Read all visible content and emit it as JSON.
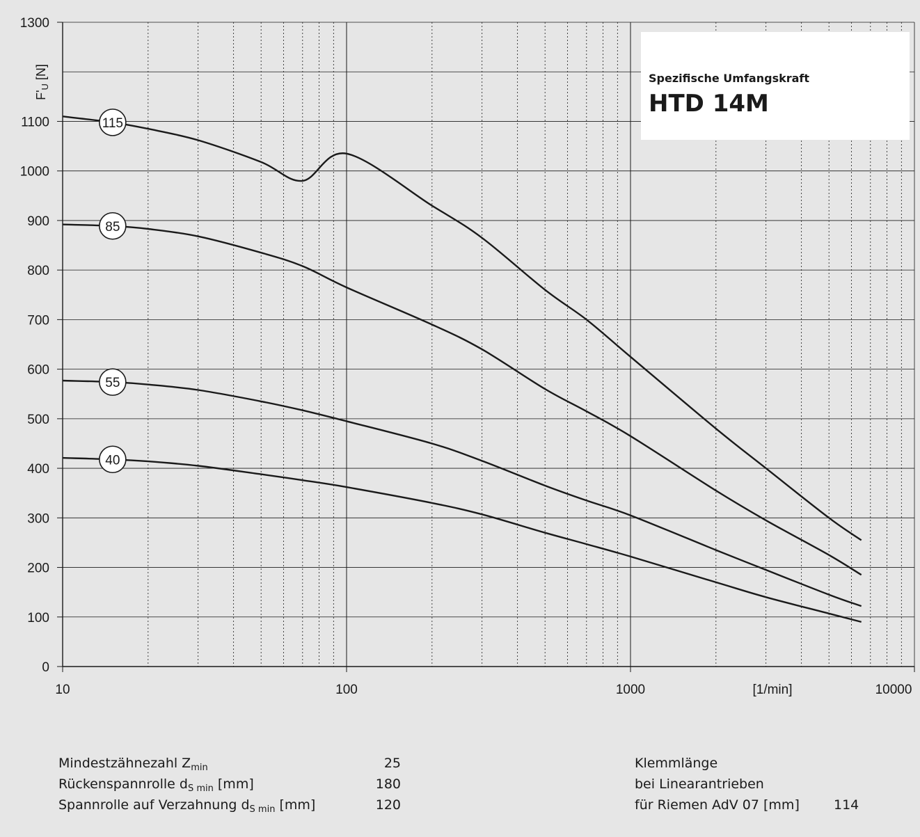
{
  "chart_data": {
    "type": "line",
    "title": "Spezifische Umfangskraft",
    "subtitle": "HTD 14M",
    "ylabel_main": "F'",
    "ylabel_sub": "U",
    "ylabel_unit": " [N]",
    "xlabel": "[1/min]",
    "x_scale": "log",
    "xlim": [
      10,
      10000
    ],
    "ylim": [
      0,
      1300
    ],
    "y_ticks": [
      0,
      100,
      200,
      300,
      400,
      500,
      600,
      700,
      800,
      900,
      1000,
      1100,
      1300
    ],
    "x_ticks": [
      10,
      100,
      1000,
      10000
    ],
    "grid": true,
    "x": [
      10,
      15,
      20,
      30,
      50,
      70,
      100,
      200,
      300,
      500,
      700,
      1000,
      2000,
      3000,
      5000,
      6500
    ],
    "series": [
      {
        "name": "115",
        "values": [
          1110,
          1098,
          1085,
          1062,
          1018,
          980,
          1035,
          930,
          865,
          760,
          700,
          625,
          480,
          400,
          300,
          255
        ]
      },
      {
        "name": "85",
        "values": [
          892,
          889,
          883,
          868,
          835,
          808,
          765,
          690,
          640,
          560,
          515,
          465,
          355,
          295,
          225,
          185
        ]
      },
      {
        "name": "55",
        "values": [
          577,
          574,
          569,
          558,
          535,
          517,
          495,
          450,
          415,
          365,
          335,
          305,
          235,
          195,
          145,
          122
        ]
      },
      {
        "name": "40",
        "values": [
          421,
          418,
          414,
          405,
          388,
          376,
          362,
          330,
          307,
          270,
          247,
          222,
          170,
          140,
          107,
          90
        ]
      }
    ]
  },
  "specs_left": [
    {
      "label": "Mindestzähnezahl Z",
      "sub": "min",
      "suffix": "",
      "value": "25"
    },
    {
      "label": "Rückenspannrolle d",
      "sub": "S min",
      "suffix": " [mm]",
      "value": "180"
    },
    {
      "label": "Spannrolle auf Verzahnung d",
      "sub": "S min",
      "suffix": " [mm]",
      "value": "120"
    }
  ],
  "specs_right": [
    {
      "label": "Klemmlänge",
      "value": ""
    },
    {
      "label": "bei Linearantrieben",
      "value": ""
    },
    {
      "label": "für Riemen AdV 07 [mm]",
      "value": "114"
    }
  ]
}
